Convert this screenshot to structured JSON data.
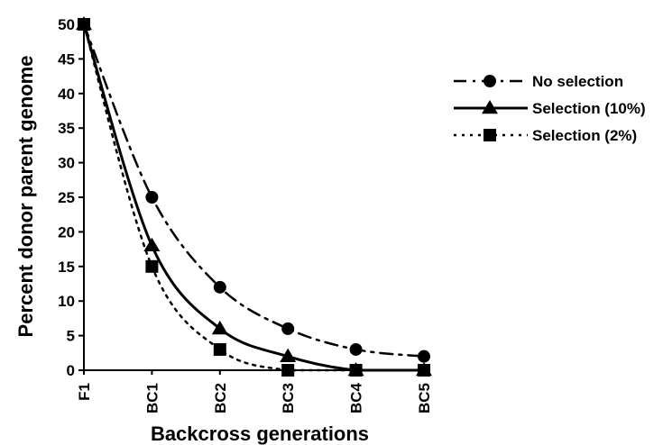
{
  "chart_data": {
    "type": "line",
    "title": "",
    "xlabel": "Backcross generations",
    "ylabel": "Percent donor parent genome",
    "categories": [
      "F1",
      "BC1",
      "BC2",
      "BC3",
      "BC4",
      "BC5"
    ],
    "ylim": [
      0,
      50
    ],
    "yticks": [
      0,
      5,
      10,
      15,
      20,
      25,
      30,
      35,
      40,
      45,
      50
    ],
    "grid": false,
    "legend_position": "right",
    "series": [
      {
        "name": "No selection",
        "marker": "circle",
        "line_style": "dash-dot",
        "values": [
          50,
          25,
          12,
          6,
          3,
          2
        ]
      },
      {
        "name": "Selection (10%)",
        "marker": "triangle",
        "line_style": "solid",
        "values": [
          50,
          18,
          6,
          2,
          0,
          0
        ]
      },
      {
        "name": "Selection (2%)",
        "marker": "square",
        "line_style": "dotted",
        "values": [
          50,
          15,
          3,
          0,
          0,
          0
        ]
      }
    ]
  }
}
